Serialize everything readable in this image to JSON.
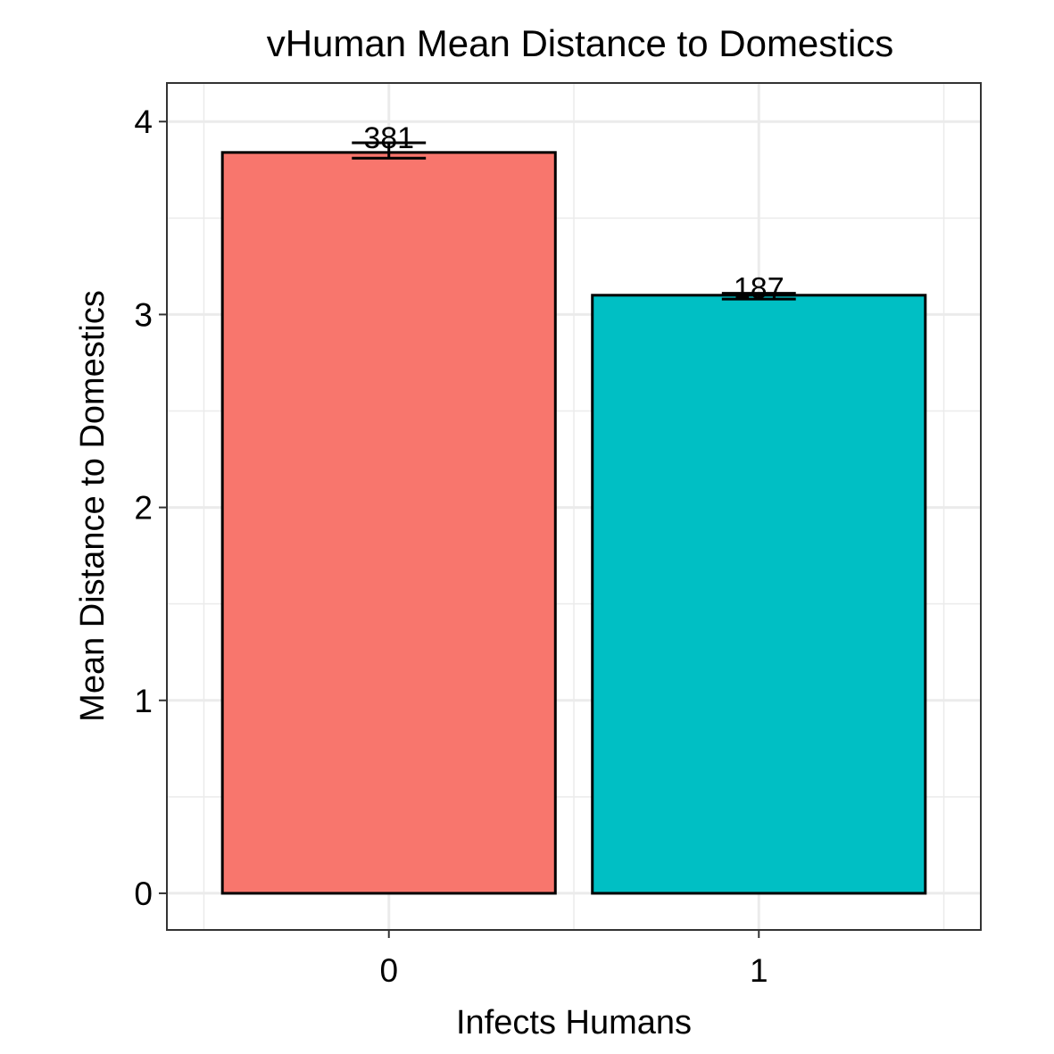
{
  "chart_data": {
    "type": "bar",
    "title": "vHuman Mean Distance to Domestics",
    "xlabel": "Infects Humans",
    "ylabel": "Mean Distance to Domestics",
    "categories": [
      "0",
      "1"
    ],
    "values": [
      3.84,
      3.1
    ],
    "error_bars": [
      {
        "lower": 3.81,
        "upper": 3.89
      },
      {
        "lower": 3.08,
        "upper": 3.11
      }
    ],
    "data_labels": [
      "381",
      "187"
    ],
    "ylim": [
      -0.19,
      4.2
    ],
    "yticks": [
      "0",
      "1",
      "2",
      "3",
      "4"
    ],
    "grid": true,
    "legend": "none",
    "colors": {
      "bars": [
        "#F8766D",
        "#00BFC4"
      ],
      "outline": "#000000",
      "grid": "#EBEBEB",
      "panel_border": "#333333"
    }
  }
}
